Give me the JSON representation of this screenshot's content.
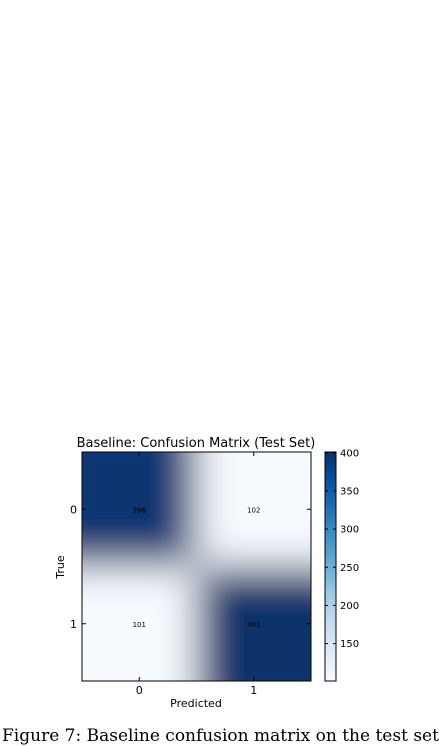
{
  "chart_data": {
    "type": "heatmap",
    "title": "Baseline: Confusion Matrix (Test Set)",
    "xlabel": "Predicted",
    "ylabel": "True",
    "x_categories": [
      "0",
      "1"
    ],
    "y_categories": [
      "0",
      "1"
    ],
    "values": [
      [
        396,
        102
      ],
      [
        101,
        401
      ]
    ],
    "colormap": "Blues",
    "colorbar": {
      "range": [
        101,
        401
      ],
      "ticks": [
        150,
        200,
        250,
        300,
        350,
        400
      ]
    },
    "colors": {
      "low": "#f7fbff",
      "high": "#08306b"
    }
  },
  "caption": "Figure 7: Baseline confusion matrix on the test set"
}
